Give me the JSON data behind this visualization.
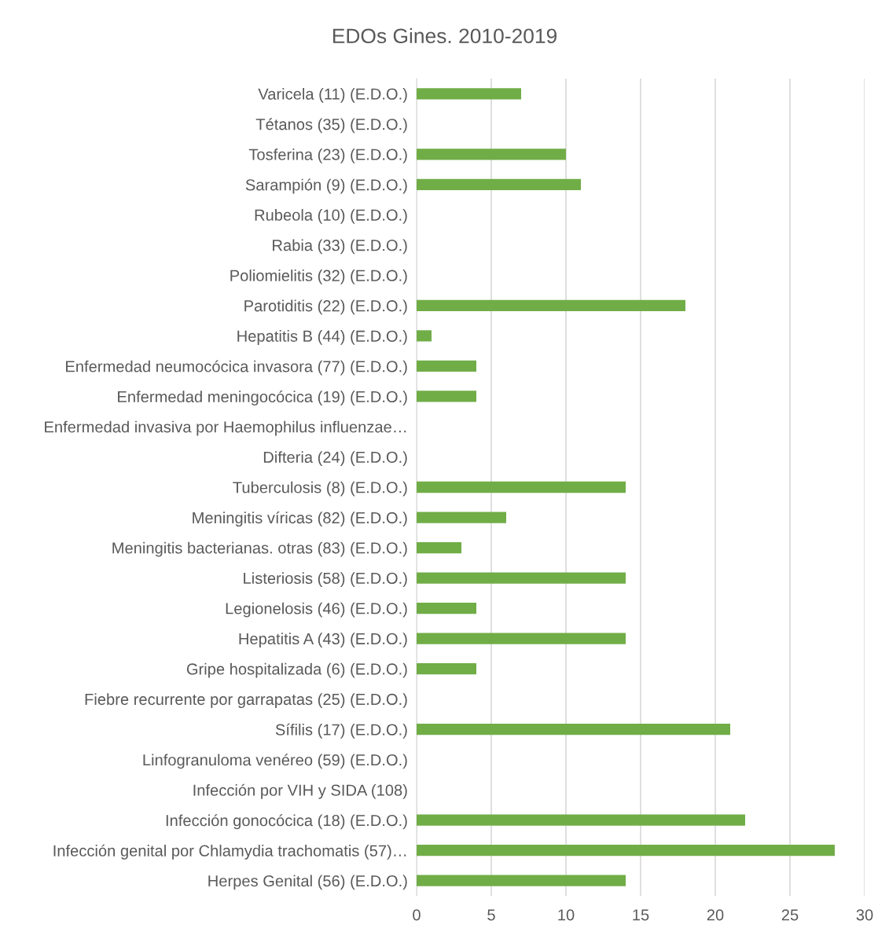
{
  "chart_data": {
    "type": "bar",
    "orientation": "horizontal",
    "title": "EDOs Gines. 2010-2019",
    "categories": [
      "Varicela (11) (E.D.O.)",
      "Tétanos (35) (E.D.O.)",
      "Tosferina (23) (E.D.O.)",
      "Sarampión (9) (E.D.O.)",
      "Rubeola (10) (E.D.O.)",
      "Rabia (33) (E.D.O.)",
      "Poliomielitis (32) (E.D.O.)",
      "Parotiditis (22) (E.D.O.)",
      "Hepatitis B (44) (E.D.O.)",
      "Enfermedad neumocócica invasora (77) (E.D.O.)",
      "Enfermedad meningocócica (19) (E.D.O.)",
      "Enfermedad invasiva por Haemophilus influenzae…",
      "Difteria (24) (E.D.O.)",
      "Tuberculosis (8) (E.D.O.)",
      "Meningitis víricas (82) (E.D.O.)",
      "Meningitis bacterianas. otras (83) (E.D.O.)",
      "Listeriosis (58) (E.D.O.)",
      "Legionelosis (46) (E.D.O.)",
      "Hepatitis A (43) (E.D.O.)",
      "Gripe hospitalizada (6) (E.D.O.)",
      "Fiebre recurrente por garrapatas (25) (E.D.O.)",
      "Sífilis (17) (E.D.O.)",
      "Linfogranuloma venéreo (59) (E.D.O.)",
      "Infección por VIH y SIDA (108)",
      "Infección gonocócica (18) (E.D.O.)",
      "Infección genital por Chlamydia trachomatis (57)…",
      "Herpes Genital (56) (E.D.O.)"
    ],
    "values": [
      7,
      0,
      10,
      11,
      0,
      0,
      0,
      18,
      1,
      4,
      4,
      0,
      0,
      14,
      6,
      3,
      14,
      4,
      14,
      4,
      0,
      21,
      0,
      0,
      22,
      28,
      14
    ],
    "color": "#70ad47",
    "xlim": [
      0,
      30
    ],
    "xticks": [
      0,
      5,
      10,
      15,
      20,
      25,
      30
    ],
    "grid": "x"
  }
}
